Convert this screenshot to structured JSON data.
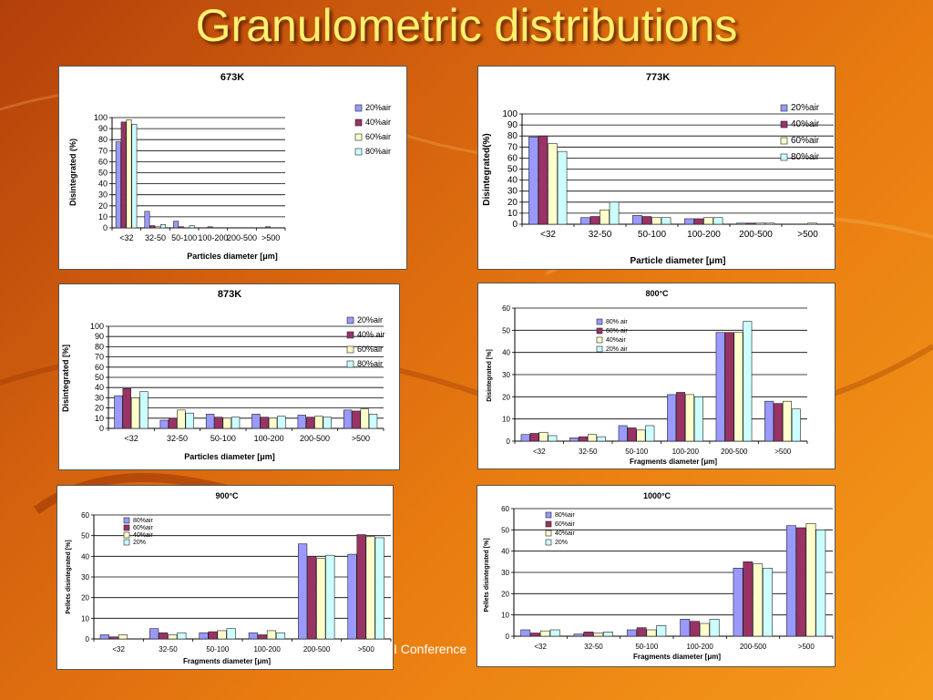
{
  "slide": {
    "title": "Granulometric distributions",
    "footer": "I Conference"
  },
  "chart_data": [
    {
      "type": "bar",
      "title": "673K",
      "xlabel": "Particles diameter [μm]",
      "ylabel": "Disintegrated (%)",
      "ylim": [
        0,
        100
      ],
      "ytick_step": 10,
      "grid": true,
      "legend": "top-right",
      "categories": [
        "<32",
        "32-50",
        "50-100",
        "100-200",
        "200-500",
        ">500"
      ],
      "series": [
        {
          "name": "20%air",
          "color": "#9999ff",
          "values": [
            78,
            15,
            6,
            0,
            0,
            0
          ]
        },
        {
          "name": "40%air",
          "color": "#993366",
          "values": [
            96,
            2,
            1,
            1,
            0,
            1
          ]
        },
        {
          "name": "60%air",
          "color": "#ffffcc",
          "values": [
            98,
            1,
            0,
            0,
            0,
            0
          ]
        },
        {
          "name": "80%air",
          "color": "#ccffff",
          "values": [
            94,
            3,
            2,
            0,
            0,
            0
          ]
        }
      ]
    },
    {
      "type": "bar",
      "title": "773K",
      "xlabel": "Particle diameter [μm]",
      "ylabel": "Disintegrated(%)",
      "ylim": [
        0,
        100
      ],
      "ytick_step": 10,
      "grid": true,
      "legend": "top-right",
      "categories": [
        "<32",
        "32-50",
        "50-100",
        "100-200",
        "200-500",
        ">500"
      ],
      "series": [
        {
          "name": "20%air",
          "color": "#9999ff",
          "values": [
            79,
            6,
            8,
            5,
            1,
            0
          ]
        },
        {
          "name": "40%air",
          "color": "#993366",
          "values": [
            80,
            7,
            7,
            5,
            1,
            0
          ]
        },
        {
          "name": "60%air",
          "color": "#ffffcc",
          "values": [
            73,
            13,
            6,
            6,
            1,
            1
          ]
        },
        {
          "name": "80%air",
          "color": "#ccffff",
          "values": [
            66,
            20,
            6,
            6,
            1,
            0
          ]
        }
      ]
    },
    {
      "type": "bar",
      "title": "873K",
      "xlabel": "Particles diameter [μm]",
      "ylabel": "Disintegrated [%]",
      "ylim": [
        0,
        100
      ],
      "ytick_step": 10,
      "grid": true,
      "legend": "top-right",
      "categories": [
        "<32",
        "32-50",
        "50-100",
        "100-200",
        "200-500",
        ">500"
      ],
      "series": [
        {
          "name": "20%air",
          "color": "#9999ff",
          "values": [
            32,
            8,
            14,
            14,
            13,
            18
          ]
        },
        {
          "name": "40% air",
          "color": "#993366",
          "values": [
            39,
            10,
            11,
            11,
            11,
            17
          ]
        },
        {
          "name": "60%air",
          "color": "#ffffcc",
          "values": [
            30,
            18,
            10,
            10,
            12,
            19
          ]
        },
        {
          "name": "80%air",
          "color": "#ccffff",
          "values": [
            36,
            15,
            11,
            12,
            11,
            14
          ]
        }
      ]
    },
    {
      "type": "bar",
      "title": "800°C",
      "xlabel": "Fragments diameter [μm]",
      "ylabel": "Disintegrated [%]",
      "ylim": [
        0,
        60
      ],
      "ytick_step": 10,
      "grid": true,
      "legend": "top-left",
      "categories": [
        "<32",
        "32-50",
        "50-100",
        "100-200",
        "200-500",
        ">500"
      ],
      "series": [
        {
          "name": "80% air",
          "color": "#9999ff",
          "values": [
            3,
            1.5,
            7,
            21,
            49,
            18
          ]
        },
        {
          "name": "60% air",
          "color": "#993366",
          "values": [
            3.5,
            2,
            6,
            22,
            49,
            17
          ]
        },
        {
          "name": "40%air",
          "color": "#ffffcc",
          "values": [
            4,
            3,
            5,
            21,
            49,
            18
          ]
        },
        {
          "name": "20% air",
          "color": "#ccffff",
          "values": [
            2.5,
            2,
            7,
            20,
            54,
            14.5
          ]
        }
      ]
    },
    {
      "type": "bar",
      "title": "900°C",
      "xlabel": "Fragments diameter [μm]",
      "ylabel": "Pellets disintegrated [%]",
      "ylim": [
        0,
        60
      ],
      "ytick_step": 10,
      "grid": true,
      "legend": "top-left",
      "categories": [
        "<32",
        "32-50",
        "50-100",
        "100-200",
        "200-500",
        ">500"
      ],
      "series": [
        {
          "name": "80%air",
          "color": "#9999ff",
          "values": [
            2,
            5,
            3,
            3,
            46,
            41
          ]
        },
        {
          "name": "60%air",
          "color": "#993366",
          "values": [
            1,
            3,
            3.5,
            2,
            40,
            50.5
          ]
        },
        {
          "name": "40%air",
          "color": "#ffffcc",
          "values": [
            2,
            2,
            4,
            4,
            39,
            49.5
          ]
        },
        {
          "name": "20%",
          "color": "#ccffff",
          "values": [
            0,
            3,
            5,
            3,
            40.5,
            49
          ]
        }
      ]
    },
    {
      "type": "bar",
      "title": "1000°C",
      "xlabel": "Fragments diameter [μm]",
      "ylabel": "Pellets disintegrated [%]",
      "ylim": [
        0,
        60
      ],
      "ytick_step": 10,
      "grid": true,
      "legend": "top-left",
      "categories": [
        "<32",
        "32-50",
        "50-100",
        "100-200",
        "200-500",
        ">500"
      ],
      "series": [
        {
          "name": "80%air",
          "color": "#9999ff",
          "values": [
            3,
            1,
            3,
            8,
            32,
            52
          ]
        },
        {
          "name": "60%air",
          "color": "#993366",
          "values": [
            1.5,
            2,
            4,
            7,
            35,
            51
          ]
        },
        {
          "name": "40%air",
          "color": "#ffffcc",
          "values": [
            2.5,
            1.5,
            3,
            6,
            34,
            53
          ]
        },
        {
          "name": "20%",
          "color": "#ccffff",
          "values": [
            3,
            2,
            5,
            8,
            32,
            50
          ]
        }
      ]
    }
  ]
}
